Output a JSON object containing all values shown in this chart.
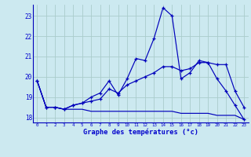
{
  "background_color": "#cce9f0",
  "plot_bg_color": "#cce9f0",
  "grid_color": "#aacccc",
  "line_color": "#0000bb",
  "xlabel": "Graphe des températures (°c)",
  "xlabel_color": "#0000cc",
  "yticks": [
    18,
    19,
    20,
    21,
    22,
    23
  ],
  "xticks": [
    0,
    1,
    2,
    3,
    4,
    5,
    6,
    7,
    8,
    9,
    10,
    11,
    12,
    13,
    14,
    15,
    16,
    17,
    18,
    19,
    20,
    21,
    22,
    23
  ],
  "ylim": [
    17.75,
    23.55
  ],
  "xlim": [
    -0.5,
    23.5
  ],
  "line1_x": [
    0,
    1,
    2,
    3,
    4,
    5,
    6,
    7,
    8,
    9,
    10,
    11,
    12,
    13,
    14,
    15,
    16,
    17,
    18,
    19,
    20,
    21,
    22,
    23
  ],
  "line1_y": [
    19.8,
    18.5,
    18.5,
    18.4,
    18.4,
    18.4,
    18.3,
    18.3,
    18.3,
    18.3,
    18.3,
    18.3,
    18.3,
    18.3,
    18.3,
    18.3,
    18.2,
    18.2,
    18.2,
    18.2,
    18.1,
    18.1,
    18.1,
    17.9
  ],
  "line2_x": [
    0,
    1,
    2,
    3,
    4,
    5,
    6,
    7,
    8,
    9,
    10,
    11,
    12,
    13,
    14,
    15,
    16,
    17,
    18,
    19,
    20,
    21,
    22,
    23
  ],
  "line2_y": [
    19.8,
    18.5,
    18.5,
    18.4,
    18.6,
    18.7,
    18.8,
    18.9,
    19.4,
    19.2,
    19.6,
    19.8,
    20.0,
    20.2,
    20.5,
    20.5,
    20.3,
    20.4,
    20.7,
    20.7,
    20.6,
    20.6,
    19.3,
    18.5
  ],
  "line3_x": [
    0,
    1,
    2,
    3,
    4,
    5,
    6,
    7,
    8,
    9,
    10,
    11,
    12,
    13,
    14,
    15,
    16,
    17,
    18,
    19,
    20,
    21,
    22,
    23
  ],
  "line3_y": [
    19.8,
    18.5,
    18.5,
    18.4,
    18.6,
    18.7,
    19.0,
    19.2,
    19.8,
    19.1,
    19.9,
    20.9,
    20.8,
    21.9,
    23.4,
    23.0,
    19.9,
    20.2,
    20.8,
    20.7,
    19.9,
    19.3,
    18.6,
    17.9
  ]
}
